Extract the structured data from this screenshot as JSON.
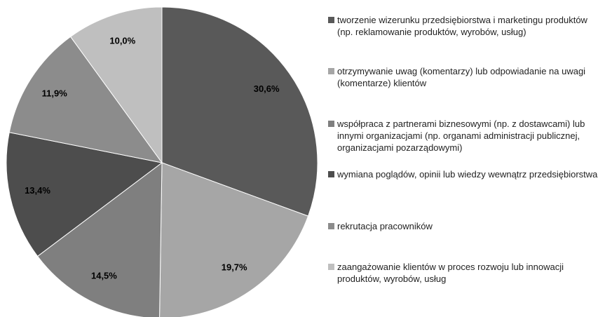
{
  "chart_data": {
    "type": "pie",
    "categories": [
      "tworzenie wizerunku przedsiębiorstwa i marketingu produktów (np. reklamowanie produktów, wyrobów, usług)",
      "otrzymywanie uwag (komentarzy) lub odpowiadanie na uwagi (komentarze) klientów",
      "współpraca z partnerami biznesowymi (np. z dostawcami) lub innymi organizacjami (np. organami administracji publicznej, organizacjami pozarządowymi)",
      "wymiana poglądów, opinii lub wiedzy wewnątrz przedsiębiorstwa",
      "rekrutacja pracowników",
      "zaangażowanie klientów w proces rozwoju lub innowacji produktów, wyrobów, usług"
    ],
    "values": [
      30.6,
      19.7,
      14.5,
      13.4,
      11.9,
      10.0
    ],
    "value_labels": [
      "30,6%",
      "19,7%",
      "14,5%",
      "13,4%",
      "11,9%",
      "10,0%"
    ],
    "colors": [
      "#595959",
      "#a6a6a6",
      "#7f7f7f",
      "#4d4d4d",
      "#8c8c8c",
      "#bfbfbf"
    ],
    "legend": "right"
  }
}
